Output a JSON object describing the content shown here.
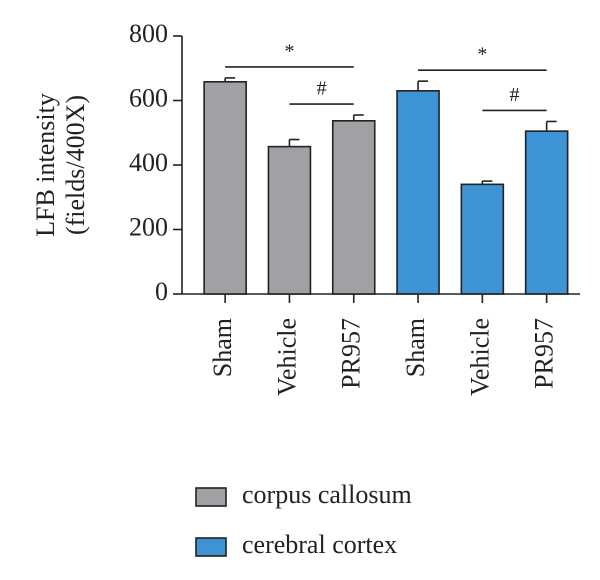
{
  "chart_data": {
    "type": "bar",
    "ylabel": [
      "LFB intensity",
      "(fields/400X)"
    ],
    "categories": [
      "Sham",
      "Vehicle",
      "PR957",
      "Sham",
      "Vehicle",
      "PR957"
    ],
    "series": [
      {
        "name": "corpus callosum",
        "color": "#a1a1a5",
        "values": [
          658,
          457,
          537,
          null,
          null,
          null
        ],
        "errors": [
          12,
          22,
          18,
          null,
          null,
          null
        ]
      },
      {
        "name": "cerebral cortex",
        "color": "#3d93d3",
        "values": [
          null,
          null,
          null,
          630,
          340,
          505
        ],
        "errors": [
          null,
          null,
          null,
          30,
          10,
          30
        ]
      }
    ],
    "ylim": [
      0,
      800
    ],
    "yticks": [
      0,
      200,
      400,
      600,
      800
    ],
    "annotations": [
      {
        "text": "*",
        "from": 0,
        "to": 2
      },
      {
        "text": "#",
        "from": 1,
        "to": 2
      },
      {
        "text": "*",
        "from": 3,
        "to": 5
      },
      {
        "text": "#",
        "from": 4,
        "to": 5
      }
    ]
  }
}
